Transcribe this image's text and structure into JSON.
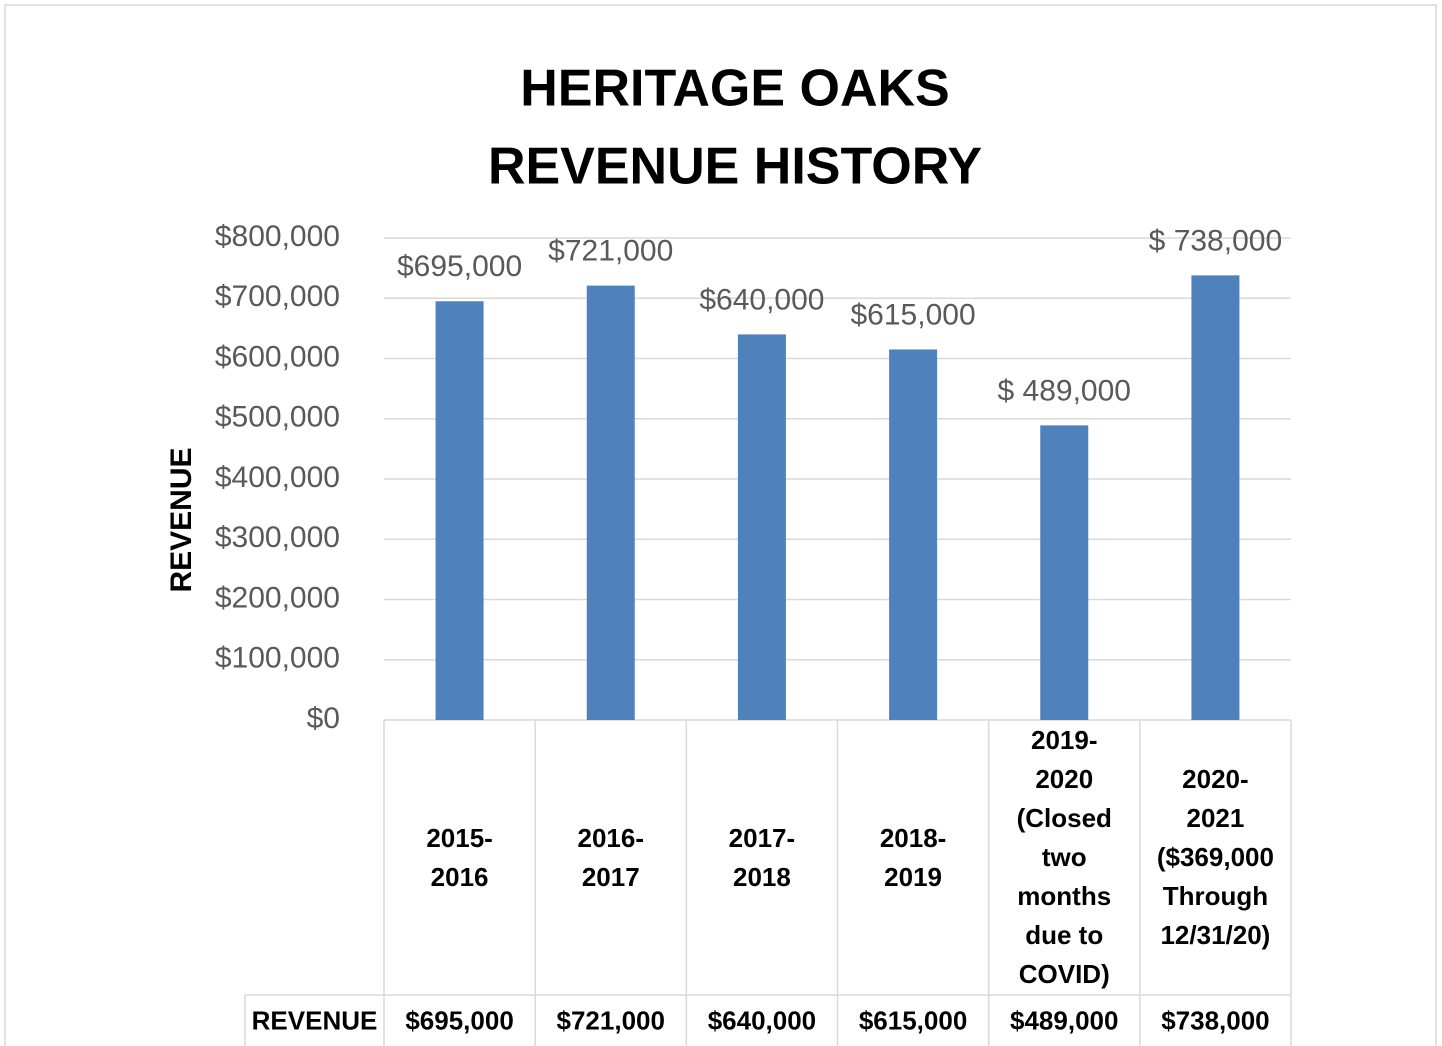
{
  "chart_data": {
    "type": "bar",
    "title": [
      "HERITAGE OAKS",
      "REVENUE HISTORY"
    ],
    "y_label": "REVENUE",
    "categories": [
      "2015-2016",
      "2016-2017",
      "2017-2018",
      "2018-2019",
      "2019-2020 (Closed two months due to COVID)",
      "2020-2021 ($369,000 Through 12/31/20)"
    ],
    "series": [
      {
        "name": "REVENUE",
        "color": "#4f81bd",
        "values": [
          695000,
          721000,
          640000,
          615000,
          489000,
          738000
        ],
        "value_labels": [
          "$695,000",
          "$721,000",
          "$640,000",
          "$615,000",
          "$ 489,000",
          "$ 738,000"
        ],
        "table_labels": [
          "$695,000",
          "$721,000",
          "$640,000",
          "$615,000",
          "$489,000",
          "$738,000"
        ]
      }
    ],
    "ylim": [
      0,
      800000
    ],
    "yticks": [
      {
        "value": 0,
        "label": "$0"
      },
      {
        "value": 100000,
        "label": "$100,000"
      },
      {
        "value": 200000,
        "label": "$200,000"
      },
      {
        "value": 300000,
        "label": "$300,000"
      },
      {
        "value": 400000,
        "label": "$400,000"
      },
      {
        "value": 500000,
        "label": "$500,000"
      },
      {
        "value": 600000,
        "label": "$600,000"
      },
      {
        "value": 700000,
        "label": "$700,000"
      },
      {
        "value": 800000,
        "label": "$800,000"
      }
    ],
    "grid": true
  }
}
